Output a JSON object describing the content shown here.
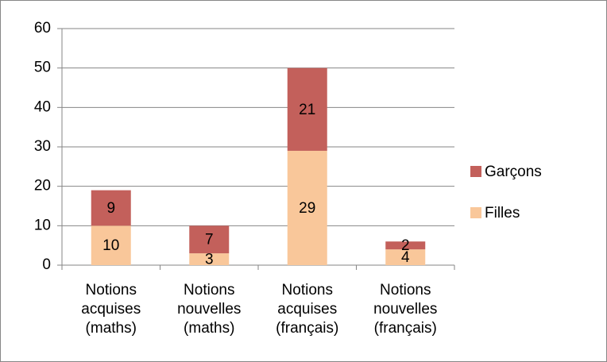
{
  "chart_data": {
    "type": "stacked_bar",
    "categories": [
      [
        "Notions",
        "acquises",
        "(maths)"
      ],
      [
        "Notions",
        "nouvelles",
        "(maths)"
      ],
      [
        "Notions",
        "acquises",
        "(français)"
      ],
      [
        "Notions",
        "nouvelles",
        "(français)"
      ]
    ],
    "series": [
      {
        "name": "Filles",
        "color": "#f9c79a",
        "values": [
          10,
          3,
          29,
          4
        ]
      },
      {
        "name": "Garçons",
        "color": "#c3605b",
        "values": [
          9,
          7,
          21,
          2
        ]
      }
    ],
    "ylim": [
      0,
      60
    ],
    "yticks": [
      0,
      10,
      20,
      30,
      40,
      50,
      60
    ],
    "grid": true,
    "legend": "right"
  }
}
